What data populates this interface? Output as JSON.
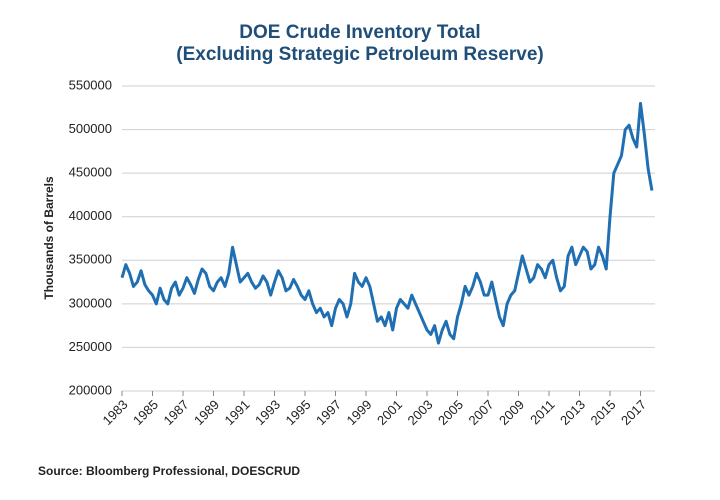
{
  "chart_data": {
    "type": "line",
    "title": "DOE Crude Inventory Total",
    "subtitle": "(Excluding Strategic Petroleum Reserve)",
    "y_label": "Thousands of Barrels",
    "source": "Source: Bloomberg Professional, DOESCRUD",
    "x": [
      1983,
      1983.25,
      1983.5,
      1983.75,
      1984,
      1984.25,
      1984.5,
      1984.75,
      1985,
      1985.25,
      1985.5,
      1985.75,
      1986,
      1986.25,
      1986.5,
      1986.75,
      1987,
      1987.25,
      1987.5,
      1987.75,
      1988,
      1988.25,
      1988.5,
      1988.75,
      1989,
      1989.25,
      1989.5,
      1989.75,
      1990,
      1990.25,
      1990.5,
      1990.75,
      1991,
      1991.25,
      1991.5,
      1991.75,
      1992,
      1992.25,
      1992.5,
      1992.75,
      1993,
      1993.25,
      1993.5,
      1993.75,
      1994,
      1994.25,
      1994.5,
      1994.75,
      1995,
      1995.25,
      1995.5,
      1995.75,
      1996,
      1996.25,
      1996.5,
      1996.75,
      1997,
      1997.25,
      1997.5,
      1997.75,
      1998,
      1998.25,
      1998.5,
      1998.75,
      1999,
      1999.25,
      1999.5,
      1999.75,
      2000,
      2000.25,
      2000.5,
      2000.75,
      2001,
      2001.25,
      2001.5,
      2001.75,
      2002,
      2002.25,
      2002.5,
      2002.75,
      2003,
      2003.25,
      2003.5,
      2003.75,
      2004,
      2004.25,
      2004.5,
      2004.75,
      2005,
      2005.25,
      2005.5,
      2005.75,
      2006,
      2006.25,
      2006.5,
      2006.75,
      2007,
      2007.25,
      2007.5,
      2007.75,
      2008,
      2008.25,
      2008.5,
      2008.75,
      2009,
      2009.25,
      2009.5,
      2009.75,
      2010,
      2010.25,
      2010.5,
      2010.75,
      2011,
      2011.25,
      2011.5,
      2011.75,
      2012,
      2012.25,
      2012.5,
      2012.75,
      2013,
      2013.25,
      2013.5,
      2013.75,
      2014,
      2014.25,
      2014.5,
      2014.75,
      2015,
      2015.25,
      2015.5,
      2015.75,
      2016,
      2016.25,
      2016.5,
      2016.75,
      2017,
      2017.25,
      2017.5,
      2017.75
    ],
    "series": [
      {
        "color": "#1f6fb2",
        "values": [
          330000,
          345000,
          335000,
          320000,
          325000,
          338000,
          322000,
          315000,
          310000,
          300000,
          318000,
          305000,
          300000,
          318000,
          325000,
          310000,
          318000,
          330000,
          322000,
          312000,
          328000,
          340000,
          335000,
          320000,
          315000,
          325000,
          330000,
          320000,
          335000,
          365000,
          345000,
          325000,
          330000,
          335000,
          325000,
          318000,
          322000,
          332000,
          325000,
          310000,
          325000,
          338000,
          330000,
          315000,
          318000,
          328000,
          320000,
          310000,
          305000,
          315000,
          300000,
          290000,
          295000,
          285000,
          290000,
          275000,
          295000,
          305000,
          300000,
          285000,
          300000,
          335000,
          325000,
          320000,
          330000,
          320000,
          300000,
          280000,
          285000,
          275000,
          290000,
          270000,
          295000,
          305000,
          300000,
          295000,
          310000,
          300000,
          290000,
          280000,
          270000,
          265000,
          275000,
          255000,
          270000,
          280000,
          265000,
          260000,
          285000,
          300000,
          320000,
          310000,
          320000,
          335000,
          325000,
          310000,
          310000,
          325000,
          305000,
          285000,
          275000,
          300000,
          310000,
          315000,
          335000,
          355000,
          340000,
          325000,
          330000,
          345000,
          340000,
          330000,
          345000,
          350000,
          330000,
          315000,
          320000,
          355000,
          365000,
          345000,
          355000,
          365000,
          360000,
          340000,
          345000,
          365000,
          355000,
          340000,
          400000,
          450000,
          460000,
          470000,
          500000,
          505000,
          490000,
          480000,
          530000,
          495000,
          455000,
          430000
        ]
      }
    ],
    "xlim": [
      1983,
      2017.95
    ],
    "xticks": [
      1983,
      1985,
      1987,
      1989,
      1991,
      1993,
      1995,
      1997,
      1999,
      2001,
      2003,
      2005,
      2007,
      2009,
      2011,
      2013,
      2015,
      2017
    ],
    "ylim": [
      200000,
      550000
    ],
    "yticks": [
      200000,
      250000,
      300000,
      350000,
      400000,
      450000,
      500000,
      550000
    ],
    "grid": true
  }
}
